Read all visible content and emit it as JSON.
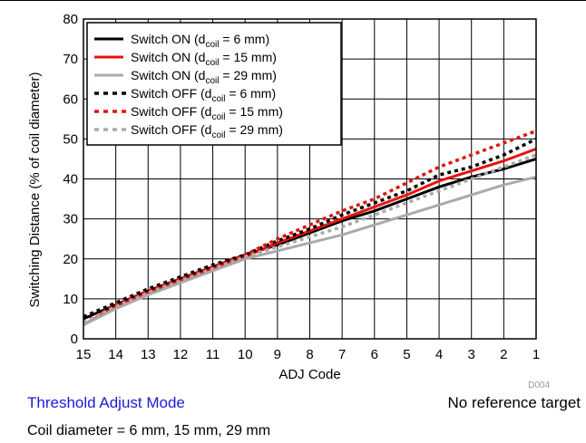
{
  "chart_data": {
    "type": "line",
    "xlabel": "ADJ Code",
    "ylabel": "Switching Distance (% of coil diameter)",
    "x": [
      15,
      14,
      13,
      12,
      11,
      10,
      9,
      8,
      7,
      6,
      5,
      4,
      3,
      2,
      1
    ],
    "x_tick_labels": [
      "15",
      "14",
      "13",
      "12",
      "11",
      "10",
      "9",
      "8",
      "7",
      "6",
      "5",
      "4",
      "3",
      "2",
      "1"
    ],
    "x_direction": "decreasing",
    "ylim": [
      0,
      80
    ],
    "y_ticks": [
      0,
      10,
      20,
      30,
      40,
      50,
      60,
      70,
      80
    ],
    "grid": true,
    "legend_position": "top-left",
    "series": [
      {
        "name": "Switch ON (dcoil = 6 mm)",
        "legend_main": "Switch ON (d",
        "legend_sub": "coil",
        "legend_tail": " = 6 mm)",
        "color": "#000000",
        "dash": "solid",
        "values": [
          5,
          8.5,
          12,
          15,
          18,
          21,
          23.5,
          26.5,
          29.5,
          32,
          35,
          38,
          40.5,
          42.5,
          45
        ]
      },
      {
        "name": "Switch ON (dcoil = 15 mm)",
        "legend_main": "Switch ON (d",
        "legend_sub": "coil",
        "legend_tail": " = 15 mm)",
        "color": "#e8120c",
        "dash": "solid",
        "values": [
          3.5,
          8,
          11.5,
          14.5,
          17.5,
          20.5,
          24,
          27,
          30,
          33,
          36,
          39.5,
          42,
          44.5,
          47.5
        ]
      },
      {
        "name": "Switch ON (dcoil = 29 mm)",
        "legend_main": "Switch ON (d",
        "legend_sub": "coil",
        "legend_tail": " = 29 mm)",
        "color": "#aaaaaa",
        "dash": "solid",
        "values": [
          3.5,
          7.5,
          11,
          14,
          17,
          20,
          22,
          24,
          26,
          28.5,
          31,
          33.5,
          36,
          38.5,
          40.5
        ]
      },
      {
        "name": "Switch OFF (dcoil = 6 mm)",
        "legend_main": "Switch OFF (d",
        "legend_sub": "coil",
        "legend_tail": " = 6 mm)",
        "color": "#000000",
        "dash": "dotted",
        "values": [
          5.5,
          9,
          12.5,
          15.5,
          18.5,
          21,
          24.5,
          27.5,
          31,
          34,
          37,
          41,
          43,
          46,
          50
        ]
      },
      {
        "name": "Switch OFF (dcoil = 15 mm)",
        "legend_main": "Switch OFF (d",
        "legend_sub": "coil",
        "legend_tail": " = 15 mm)",
        "color": "#e8120c",
        "dash": "dotted",
        "values": [
          4,
          8.5,
          12,
          15,
          18,
          21,
          25,
          28.5,
          32,
          35,
          39,
          43,
          46,
          49,
          52
        ]
      },
      {
        "name": "Switch OFF (dcoil = 29 mm)",
        "legend_main": "Switch OFF (d",
        "legend_sub": "coil",
        "legend_tail": " = 29 mm)",
        "color": "#aaaaaa",
        "dash": "dotted",
        "values": [
          4,
          8,
          11.5,
          14.5,
          17.5,
          20.5,
          23,
          25.5,
          28,
          31,
          34,
          37,
          40,
          43,
          46
        ]
      }
    ],
    "figure_code": "D004"
  },
  "captions": {
    "mode": "Threshold Adjust Mode",
    "reference": "No reference target",
    "coil": "Coil diameter = 6 mm, 15 mm, 29 mm"
  },
  "colors": {
    "mode_caption": "#1a1adb"
  }
}
